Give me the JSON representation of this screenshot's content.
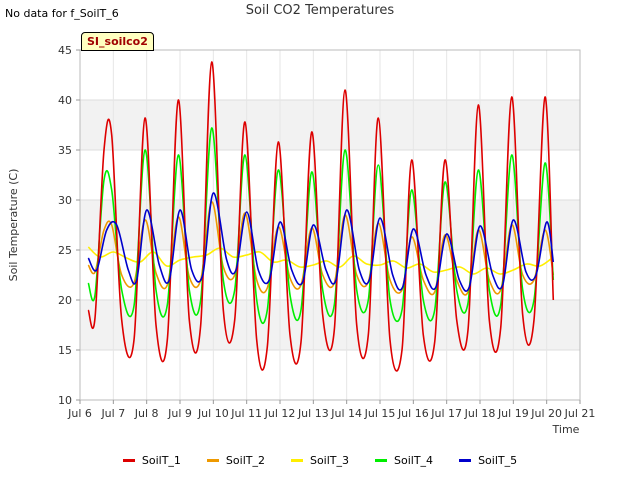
{
  "header": {
    "nodata_text": "No data for f_SoilT_6",
    "title": "Soil CO2 Temperatures",
    "site_badge": "SI_soilco2"
  },
  "chart_data": {
    "type": "line",
    "title": "Soil CO2 Temperatures",
    "xlabel": "Time",
    "ylabel": "Soil Temperature (C)",
    "x_unit": "day of July",
    "xlim": [
      6,
      21
    ],
    "ylim": [
      10,
      45
    ],
    "x_ticks": [
      6,
      7,
      8,
      9,
      10,
      11,
      12,
      13,
      14,
      15,
      16,
      17,
      18,
      19,
      20,
      21
    ],
    "x_tick_labels": [
      "Jul 6",
      "Jul 7",
      "Jul 8",
      "Jul 9",
      "Jul 10",
      "Jul 11",
      "Jul 12",
      "Jul 13",
      "Jul 14",
      "Jul 15",
      "Jul 16",
      "Jul 17",
      "Jul 18",
      "Jul 19",
      "Jul 20",
      "Jul 21"
    ],
    "y_ticks": [
      10,
      15,
      20,
      25,
      30,
      35,
      40,
      45
    ],
    "grid": true,
    "legend_position": "bottom",
    "series": [
      {
        "name": "SoilT_1",
        "color": "#dd0000",
        "x": [
          6.25,
          6.45,
          6.72,
          6.95,
          7.25,
          7.62,
          7.95,
          8.28,
          8.62,
          8.95,
          9.28,
          9.62,
          9.95,
          10.3,
          10.64,
          10.95,
          11.3,
          11.62,
          11.95,
          12.3,
          12.63,
          12.95,
          13.28,
          13.63,
          13.95,
          14.3,
          14.65,
          14.95,
          15.3,
          15.66,
          15.95,
          16.3,
          16.64,
          16.95,
          17.3,
          17.64,
          17.95,
          18.28,
          18.62,
          18.95,
          19.28,
          19.62,
          19.95,
          20.2
        ],
        "values": [
          19.0,
          18.2,
          35.0,
          36.5,
          18.0,
          16.0,
          38.2,
          17.5,
          16.0,
          40.0,
          18.0,
          17.5,
          43.8,
          19.0,
          18.0,
          37.8,
          16.0,
          15.3,
          35.8,
          16.5,
          15.8,
          36.8,
          18.5,
          17.0,
          41.0,
          17.5,
          16.5,
          38.2,
          16.0,
          15.0,
          34.0,
          16.5,
          15.8,
          34.0,
          18.0,
          17.0,
          39.5,
          18.0,
          17.2,
          40.3,
          18.5,
          18.0,
          40.3,
          20.0
        ]
      },
      {
        "name": "SoilT_2",
        "color": "#ee9900",
        "x": [
          6.25,
          6.45,
          6.72,
          6.95,
          7.25,
          7.62,
          7.95,
          8.28,
          8.62,
          8.95,
          9.28,
          9.62,
          9.95,
          10.3,
          10.64,
          10.95,
          11.3,
          11.62,
          11.95,
          12.3,
          12.63,
          12.95,
          13.28,
          13.63,
          13.95,
          14.3,
          14.65,
          14.95,
          15.3,
          15.66,
          15.95,
          16.3,
          16.64,
          16.95,
          17.3,
          17.64,
          17.95,
          18.28,
          18.62,
          18.95,
          19.28,
          19.62,
          19.95,
          20.2
        ],
        "values": [
          23.5,
          22.8,
          27.0,
          27.5,
          22.5,
          21.7,
          28.0,
          22.7,
          21.5,
          28.3,
          22.3,
          22.0,
          29.8,
          23.3,
          22.5,
          28.7,
          22.0,
          21.2,
          27.3,
          22.2,
          21.5,
          27.2,
          22.5,
          21.7,
          28.5,
          22.5,
          21.8,
          27.7,
          22.0,
          21.0,
          26.3,
          22.0,
          20.8,
          26.5,
          22.0,
          20.8,
          27.0,
          22.0,
          21.0,
          27.5,
          22.5,
          22.0,
          27.0,
          22.5
        ]
      },
      {
        "name": "SoilT_3",
        "color": "#ffee00",
        "x": [
          6.25,
          6.6,
          7.0,
          7.4,
          7.8,
          8.2,
          8.6,
          9.0,
          9.4,
          9.8,
          10.2,
          10.6,
          11.0,
          11.4,
          11.8,
          12.2,
          12.6,
          13.0,
          13.4,
          13.8,
          14.2,
          14.6,
          15.0,
          15.4,
          15.8,
          16.2,
          16.6,
          17.0,
          17.4,
          17.8,
          18.2,
          18.6,
          19.0,
          19.4,
          19.8,
          20.2
        ],
        "values": [
          25.3,
          24.3,
          24.8,
          24.2,
          23.8,
          24.8,
          23.4,
          24.0,
          24.3,
          24.5,
          25.2,
          24.3,
          24.5,
          24.8,
          23.8,
          24.0,
          23.3,
          23.5,
          23.9,
          23.3,
          24.4,
          23.6,
          23.5,
          23.9,
          23.2,
          23.6,
          22.8,
          23.0,
          23.3,
          22.6,
          23.2,
          22.6,
          23.0,
          23.6,
          23.4,
          24.3
        ]
      },
      {
        "name": "SoilT_4",
        "color": "#00ee00",
        "x": [
          6.25,
          6.45,
          6.72,
          6.95,
          7.25,
          7.62,
          7.95,
          8.28,
          8.62,
          8.95,
          9.28,
          9.62,
          9.95,
          10.3,
          10.64,
          10.95,
          11.3,
          11.62,
          11.95,
          12.3,
          12.63,
          12.95,
          13.28,
          13.63,
          13.95,
          14.3,
          14.65,
          14.95,
          15.3,
          15.66,
          15.95,
          16.3,
          16.64,
          16.95,
          17.3,
          17.64,
          17.95,
          18.28,
          18.62,
          18.95,
          19.28,
          19.62,
          19.95,
          20.2
        ],
        "values": [
          21.7,
          20.5,
          32.0,
          31.0,
          21.0,
          19.4,
          35.0,
          21.0,
          19.5,
          34.5,
          21.0,
          20.0,
          37.2,
          22.0,
          21.0,
          34.5,
          20.0,
          19.0,
          33.0,
          20.5,
          19.0,
          32.8,
          21.0,
          19.5,
          35.0,
          21.0,
          20.0,
          33.5,
          20.0,
          19.0,
          31.0,
          20.0,
          19.0,
          31.8,
          21.0,
          19.7,
          33.0,
          21.0,
          19.5,
          34.5,
          21.0,
          20.0,
          33.7,
          22.0
        ]
      },
      {
        "name": "SoilT_5",
        "color": "#0000cc",
        "x": [
          6.25,
          6.5,
          6.8,
          7.1,
          7.45,
          7.7,
          8.0,
          8.38,
          8.68,
          9.0,
          9.35,
          9.68,
          10.0,
          10.4,
          10.68,
          11.0,
          11.35,
          11.68,
          12.0,
          12.35,
          12.68,
          13.0,
          13.38,
          13.68,
          14.0,
          14.38,
          14.68,
          15.0,
          15.38,
          15.68,
          16.0,
          16.38,
          16.68,
          17.0,
          17.38,
          17.68,
          18.0,
          18.38,
          18.68,
          19.0,
          19.38,
          19.68,
          20.0,
          20.2
        ],
        "values": [
          24.2,
          23.0,
          27.0,
          27.5,
          23.0,
          22.0,
          29.0,
          23.5,
          22.0,
          29.0,
          23.0,
          22.5,
          30.7,
          24.0,
          23.0,
          28.8,
          23.0,
          22.0,
          27.8,
          23.0,
          21.8,
          27.5,
          23.0,
          22.0,
          29.0,
          23.0,
          22.0,
          28.2,
          22.5,
          21.3,
          27.1,
          22.5,
          21.3,
          26.6,
          22.0,
          21.3,
          27.4,
          22.5,
          21.5,
          28.0,
          22.8,
          22.5,
          27.8,
          23.8
        ]
      }
    ]
  }
}
